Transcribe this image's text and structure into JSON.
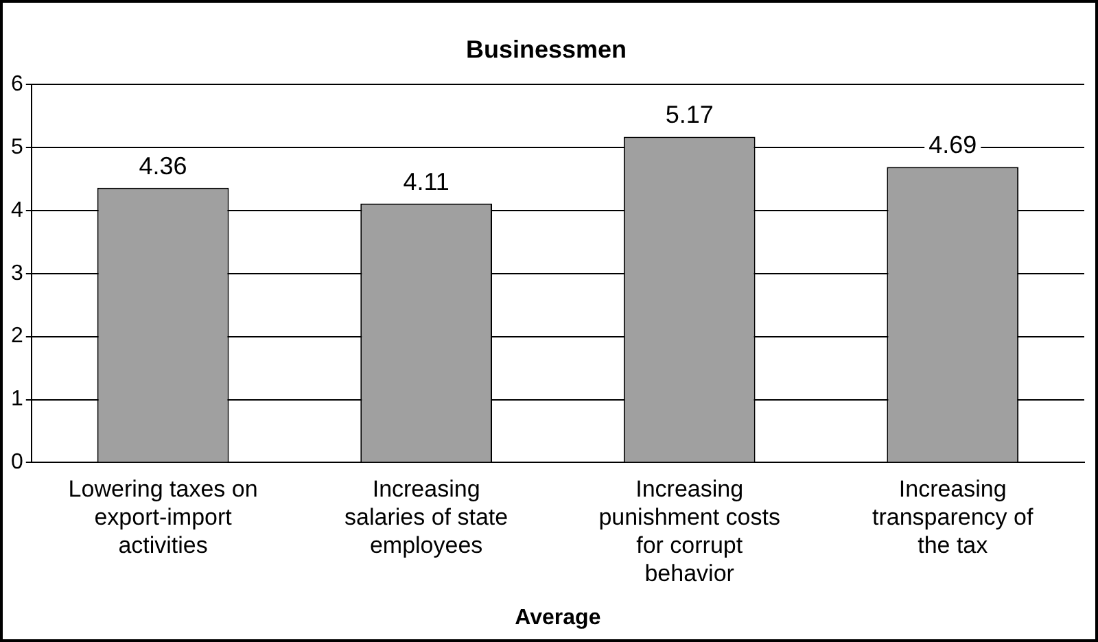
{
  "chart_data": {
    "type": "bar",
    "title": "Businessmen",
    "xlabel": "Average",
    "categories": [
      "Lowering taxes on export-import activities",
      "Increasing salaries of state employees",
      "Increasing punishment costs for corrupt behavior",
      "Increasing transparency of the tax"
    ],
    "values": [
      4.36,
      4.11,
      5.17,
      4.69
    ],
    "color": "#a0a0a0",
    "ylim": [
      0,
      6
    ],
    "yticks": [
      0,
      1,
      2,
      3,
      4,
      5,
      6
    ],
    "grid": "y",
    "legend": false,
    "data_labels": true
  }
}
